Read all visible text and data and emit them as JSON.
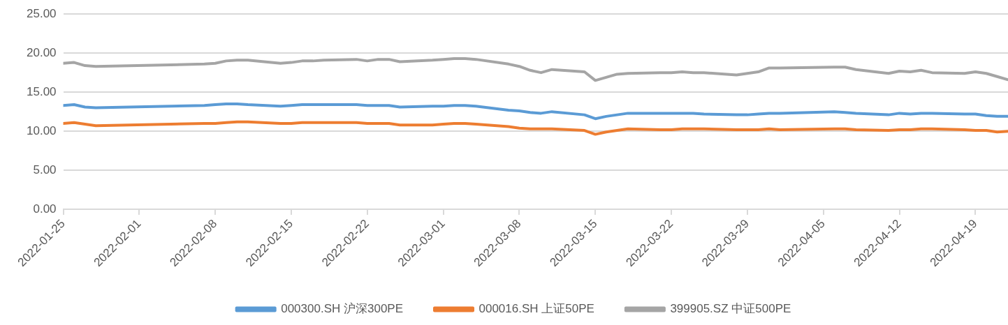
{
  "chart_data": {
    "type": "line",
    "x": [
      "2022-01-25",
      "2022-01-26",
      "2022-01-27",
      "2022-01-28",
      "2022-02-07",
      "2022-02-08",
      "2022-02-09",
      "2022-02-10",
      "2022-02-11",
      "2022-02-14",
      "2022-02-15",
      "2022-02-16",
      "2022-02-17",
      "2022-02-18",
      "2022-02-21",
      "2022-02-22",
      "2022-02-23",
      "2022-02-24",
      "2022-02-25",
      "2022-02-28",
      "2022-03-01",
      "2022-03-02",
      "2022-03-03",
      "2022-03-04",
      "2022-03-07",
      "2022-03-08",
      "2022-03-09",
      "2022-03-10",
      "2022-03-11",
      "2022-03-14",
      "2022-03-15",
      "2022-03-16",
      "2022-03-17",
      "2022-03-18",
      "2022-03-21",
      "2022-03-22",
      "2022-03-23",
      "2022-03-24",
      "2022-03-25",
      "2022-03-28",
      "2022-03-29",
      "2022-03-30",
      "2022-03-31",
      "2022-04-01",
      "2022-04-06",
      "2022-04-07",
      "2022-04-08",
      "2022-04-11",
      "2022-04-12",
      "2022-04-13",
      "2022-04-14",
      "2022-04-15",
      "2022-04-18",
      "2022-04-19",
      "2022-04-20",
      "2022-04-21",
      "2022-04-22"
    ],
    "series": [
      {
        "name": "000300.SH 沪深300PE",
        "color": "#5b9bd5",
        "values": [
          13.3,
          13.4,
          13.1,
          13.0,
          13.3,
          13.4,
          13.5,
          13.5,
          13.4,
          13.2,
          13.3,
          13.4,
          13.4,
          13.4,
          13.4,
          13.3,
          13.3,
          13.3,
          13.1,
          13.2,
          13.2,
          13.3,
          13.3,
          13.2,
          12.7,
          12.6,
          12.4,
          12.3,
          12.5,
          12.1,
          11.6,
          11.9,
          12.1,
          12.3,
          12.3,
          12.3,
          12.3,
          12.3,
          12.2,
          12.1,
          12.1,
          12.2,
          12.3,
          12.3,
          12.5,
          12.4,
          12.3,
          12.1,
          12.3,
          12.2,
          12.3,
          12.3,
          12.2,
          12.2,
          12.0,
          11.9,
          11.9
        ]
      },
      {
        "name": "000016.SH 上证50PE",
        "color": "#ed7d31",
        "values": [
          11.0,
          11.1,
          10.9,
          10.7,
          11.0,
          11.0,
          11.1,
          11.2,
          11.2,
          11.0,
          11.0,
          11.1,
          11.1,
          11.1,
          11.1,
          11.0,
          11.0,
          11.0,
          10.8,
          10.8,
          10.9,
          11.0,
          11.0,
          10.9,
          10.6,
          10.4,
          10.3,
          10.3,
          10.3,
          10.1,
          9.6,
          9.9,
          10.1,
          10.3,
          10.2,
          10.2,
          10.3,
          10.3,
          10.3,
          10.2,
          10.2,
          10.2,
          10.3,
          10.2,
          10.3,
          10.3,
          10.2,
          10.1,
          10.2,
          10.2,
          10.3,
          10.3,
          10.2,
          10.1,
          10.1,
          9.9,
          10.0
        ]
      },
      {
        "name": "399905.SZ 中证500PE",
        "color": "#a5a5a5",
        "values": [
          18.7,
          18.8,
          18.4,
          18.3,
          18.6,
          18.7,
          19.0,
          19.1,
          19.1,
          18.7,
          18.8,
          19.0,
          19.0,
          19.1,
          19.2,
          19.0,
          19.2,
          19.2,
          18.9,
          19.1,
          19.2,
          19.3,
          19.3,
          19.2,
          18.6,
          18.3,
          17.8,
          17.5,
          17.9,
          17.6,
          16.5,
          16.9,
          17.3,
          17.4,
          17.5,
          17.5,
          17.6,
          17.5,
          17.5,
          17.2,
          17.4,
          17.6,
          18.1,
          18.1,
          18.2,
          18.2,
          17.9,
          17.4,
          17.7,
          17.6,
          17.8,
          17.5,
          17.4,
          17.6,
          17.4,
          17.0,
          16.6
        ]
      }
    ],
    "xlim": [
      "2022-01-25",
      "2022-04-22"
    ],
    "xticks": [
      "2022-01-25",
      "2022-02-01",
      "2022-02-08",
      "2022-02-15",
      "2022-02-22",
      "2022-03-01",
      "2022-03-08",
      "2022-03-15",
      "2022-03-22",
      "2022-03-29",
      "2022-04-05",
      "2022-04-12",
      "2022-04-19"
    ],
    "ylim": [
      0,
      25
    ],
    "yticks": [
      {
        "value": 0,
        "label": "0.00"
      },
      {
        "value": 5,
        "label": "5.00"
      },
      {
        "value": 10,
        "label": "10.00"
      },
      {
        "value": 15,
        "label": "15.00"
      },
      {
        "value": 20,
        "label": "20.00"
      },
      {
        "value": 25,
        "label": "25.00"
      }
    ],
    "grid": "y",
    "legend": "bottom",
    "marker": "none",
    "line_style": "solid"
  }
}
